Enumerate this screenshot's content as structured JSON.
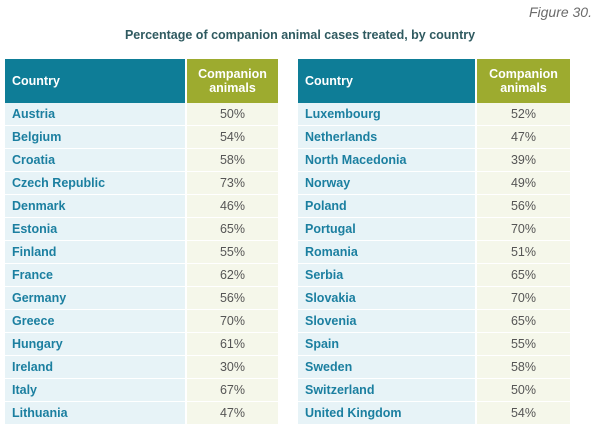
{
  "figure_label": "Figure 30.",
  "title": "Percentage of companion animal cases treated, by country",
  "headers": {
    "country": "Country",
    "companion": "Companion animals"
  },
  "left_table": [
    {
      "country": "Austria",
      "value": "50%"
    },
    {
      "country": "Belgium",
      "value": "54%"
    },
    {
      "country": "Croatia",
      "value": "58%"
    },
    {
      "country": "Czech Republic",
      "value": "73%"
    },
    {
      "country": "Denmark",
      "value": "46%"
    },
    {
      "country": "Estonia",
      "value": "65%"
    },
    {
      "country": "Finland",
      "value": "55%"
    },
    {
      "country": "France",
      "value": "62%"
    },
    {
      "country": "Germany",
      "value": "56%"
    },
    {
      "country": "Greece",
      "value": "70%"
    },
    {
      "country": "Hungary",
      "value": "61%"
    },
    {
      "country": "Ireland",
      "value": "30%"
    },
    {
      "country": "Italy",
      "value": "67%"
    },
    {
      "country": "Lithuania",
      "value": "47%"
    }
  ],
  "right_table": [
    {
      "country": "Luxembourg",
      "value": "52%"
    },
    {
      "country": "Netherlands",
      "value": "47%"
    },
    {
      "country": "North Macedonia",
      "value": "39%"
    },
    {
      "country": "Norway",
      "value": "49%"
    },
    {
      "country": "Poland",
      "value": "56%"
    },
    {
      "country": "Portugal",
      "value": "70%"
    },
    {
      "country": "Romania",
      "value": "51%"
    },
    {
      "country": "Serbia",
      "value": "65%"
    },
    {
      "country": "Slovakia",
      "value": "70%"
    },
    {
      "country": "Slovenia",
      "value": "65%"
    },
    {
      "country": "Spain",
      "value": "55%"
    },
    {
      "country": "Sweden",
      "value": "58%"
    },
    {
      "country": "Switzerland",
      "value": "50%"
    },
    {
      "country": "United Kingdom",
      "value": "54%"
    }
  ],
  "colors": {
    "country_header": "#0e7d97",
    "companion_header": "#9dab2f",
    "country_cell": "#e7f3f7",
    "value_cell": "#f5f7ea",
    "country_text": "#1b7fa0"
  }
}
